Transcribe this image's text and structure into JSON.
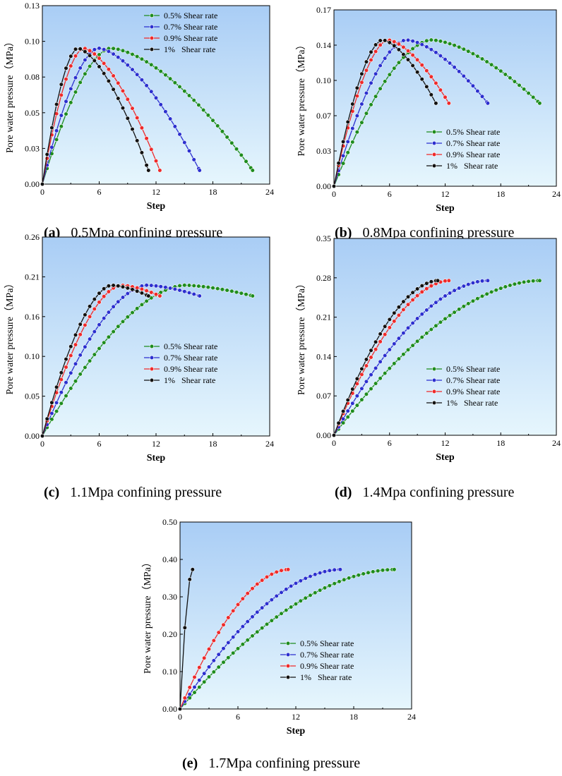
{
  "figure": {
    "series_names": [
      "0.5% Shear rate",
      "0.7% Shear rate",
      "0.9% Shear rate",
      "1%   Shear rate"
    ],
    "series_colors": [
      "#1e8c1e",
      "#2b2fcf",
      "#ee2a2a",
      "#111111"
    ],
    "plot_gradient": [
      "#e6f6fd",
      "#a9cdf5"
    ]
  },
  "chart_data": [
    {
      "id": "a",
      "type": "line",
      "panel_tag": "(a)",
      "title": "0.5Mpa confining pressure",
      "xlabel": "Step",
      "ylabel": "Pore water pressure（MPa）",
      "xlim": [
        0,
        24
      ],
      "ylim": [
        0,
        0.13
      ],
      "xticks": [
        "0",
        "6",
        "12",
        "18",
        "24"
      ],
      "yticks": [
        "0.00",
        "0.03",
        "0.05",
        "0.08",
        "0.10",
        "0.13"
      ],
      "legend": "top-right",
      "series": [
        {
          "name": "0.5% Shear rate",
          "x_end": 22.2,
          "peak_x": 7.2,
          "peak_y": 0.099,
          "end_y": 0.01
        },
        {
          "name": "0.7% Shear rate",
          "x_end": 16.6,
          "peak_x": 5.9,
          "peak_y": 0.099,
          "end_y": 0.01
        },
        {
          "name": "0.9% Shear rate",
          "x_end": 12.4,
          "peak_x": 4.3,
          "peak_y": 0.099,
          "end_y": 0.01
        },
        {
          "name": "1%   Shear rate",
          "x_end": 11.2,
          "peak_x": 3.7,
          "peak_y": 0.099,
          "end_y": 0.01
        }
      ]
    },
    {
      "id": "b",
      "type": "line",
      "panel_tag": "(b)",
      "title": "0.8Mpa confining pressure",
      "xlabel": "Step",
      "ylabel": "Pore water pressure（MPa）",
      "xlim": [
        0,
        24
      ],
      "ylim": [
        0,
        0.17
      ],
      "xticks": [
        "0",
        "6",
        "12",
        "18",
        "24"
      ],
      "yticks": [
        "0.00",
        "0.03",
        "0.07",
        "0.10",
        "0.14",
        "0.17"
      ],
      "legend": "bottom-right",
      "series": [
        {
          "name": "0.5% Shear rate",
          "x_end": 22.2,
          "peak_x": 10.5,
          "peak_y": 0.141,
          "end_y": 0.08
        },
        {
          "name": "0.7% Shear rate",
          "x_end": 16.6,
          "peak_x": 7.8,
          "peak_y": 0.141,
          "end_y": 0.08
        },
        {
          "name": "0.9% Shear rate",
          "x_end": 12.4,
          "peak_x": 5.8,
          "peak_y": 0.141,
          "end_y": 0.08
        },
        {
          "name": "1%   Shear rate",
          "x_end": 11.0,
          "peak_x": 5.2,
          "peak_y": 0.141,
          "end_y": 0.08
        }
      ]
    },
    {
      "id": "c",
      "type": "line",
      "panel_tag": "(c)",
      "title": "1.1Mpa confining pressure",
      "xlabel": "Step",
      "ylabel": "Pore water pressure（MPa）",
      "xlim": [
        0,
        24
      ],
      "ylim": [
        0,
        0.26
      ],
      "xticks": [
        "0",
        "6",
        "12",
        "18",
        "24"
      ],
      "yticks": [
        "0.00",
        "0.05",
        "0.10",
        "0.16",
        "0.21",
        "0.26"
      ],
      "legend": "bottom-right",
      "series": [
        {
          "name": "0.5% Shear rate",
          "x_end": 22.2,
          "peak_x": 15.0,
          "peak_y": 0.197,
          "end_y": 0.183
        },
        {
          "name": "0.7% Shear rate",
          "x_end": 16.6,
          "peak_x": 11.0,
          "peak_y": 0.197,
          "end_y": 0.183
        },
        {
          "name": "0.9% Shear rate",
          "x_end": 12.4,
          "peak_x": 8.3,
          "peak_y": 0.197,
          "end_y": 0.183
        },
        {
          "name": "1%   Shear rate",
          "x_end": 11.2,
          "peak_x": 7.3,
          "peak_y": 0.197,
          "end_y": 0.183
        }
      ]
    },
    {
      "id": "d",
      "type": "line",
      "panel_tag": "(d)",
      "title": "1.4Mpa confining pressure",
      "xlabel": "Step",
      "ylabel": "Pore water pressure（MPa）",
      "xlim": [
        0,
        24
      ],
      "ylim": [
        0,
        0.35
      ],
      "xticks": [
        "0",
        "6",
        "12",
        "18",
        "24"
      ],
      "yticks": [
        "0.00",
        "0.07",
        "0.14",
        "0.21",
        "0.28",
        "0.35"
      ],
      "legend": "bottom-right",
      "series": [
        {
          "name": "0.5% Shear rate",
          "x_end": 22.2,
          "peak_x": 22.2,
          "peak_y": 0.275,
          "end_y": 0.275
        },
        {
          "name": "0.7% Shear rate",
          "x_end": 16.6,
          "peak_x": 16.6,
          "peak_y": 0.275,
          "end_y": 0.275
        },
        {
          "name": "0.9% Shear rate",
          "x_end": 12.4,
          "peak_x": 12.4,
          "peak_y": 0.275,
          "end_y": 0.275
        },
        {
          "name": "1%   Shear rate",
          "x_end": 11.2,
          "peak_x": 11.2,
          "peak_y": 0.275,
          "end_y": 0.275
        }
      ]
    },
    {
      "id": "e",
      "type": "line",
      "panel_tag": "(e)",
      "title": "1.7Mpa confining pressure",
      "xlabel": "Step",
      "ylabel": "Pore water pressure（MPa）",
      "xlim": [
        0,
        24
      ],
      "ylim": [
        0,
        0.5
      ],
      "xticks": [
        "0",
        "6",
        "12",
        "18",
        "24"
      ],
      "yticks": [
        "0.00",
        "0.10",
        "0.20",
        "0.30",
        "0.40",
        "0.50"
      ],
      "legend": "bottom-right",
      "series": [
        {
          "name": "0.5% Shear rate",
          "x_end": 22.2,
          "peak_x": 22.2,
          "peak_y": 0.373,
          "end_y": 0.373
        },
        {
          "name": "0.7% Shear rate",
          "x_end": 16.6,
          "peak_x": 16.6,
          "peak_y": 0.373,
          "end_y": 0.373
        },
        {
          "name": "0.9% Shear rate",
          "x_end": 11.2,
          "peak_x": 11.2,
          "peak_y": 0.373,
          "end_y": 0.373
        },
        {
          "name": "1%   Shear rate",
          "x_end": 1.3,
          "peak_x": 1.3,
          "peak_y": 0.373,
          "end_y": 0.373
        }
      ]
    }
  ]
}
